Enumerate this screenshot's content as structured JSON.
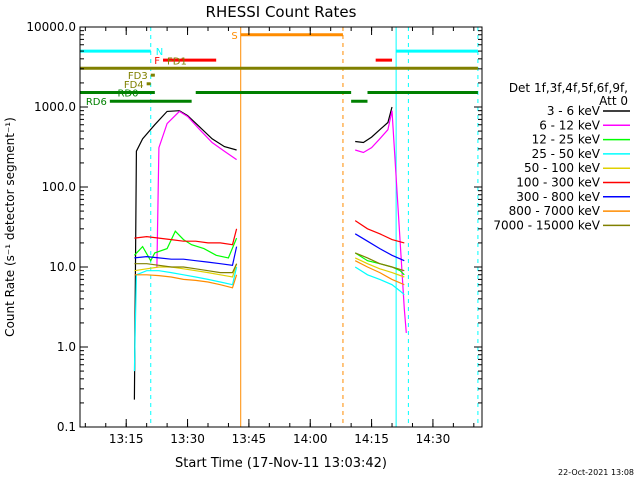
{
  "chart_data": {
    "type": "line",
    "title": "RHESSI Count Rates",
    "xlabel": "Start Time (17-Nov-11 13:03:42)",
    "ylabel": "Count Rate (s⁻¹ detector segment⁻¹)",
    "y_scale": "log",
    "x_range": [
      "13:03:42",
      "14:42:00"
    ],
    "ylim": [
      0.1,
      10000
    ],
    "x_ticks": [
      "13:15",
      "13:30",
      "13:45",
      "14:00",
      "14:15",
      "14:30"
    ],
    "y_ticks": [
      "0.1",
      "1.0",
      "10.0",
      "100.0",
      "1000.0",
      "10000.0"
    ],
    "footer": "22-Oct-2021 13:08",
    "legend": {
      "header": [
        "Det 1f,3f,4f,5f,6f,9f,",
        "Att 0"
      ],
      "placement": "right"
    },
    "series": [
      {
        "name": "3 - 6 keV",
        "color": "#000000",
        "x": [
          "13:17:00",
          "13:17:30",
          "13:19:00",
          "13:22:00",
          "13:25:00",
          "13:28:00",
          "13:30:00",
          "13:33:00",
          "13:36:00",
          "13:39:00",
          "13:42:00",
          "14:11:00",
          "14:13:00",
          "14:15:00",
          "14:17:00",
          "14:19:00",
          "14:20:00"
        ],
        "y": [
          0.22,
          280,
          400,
          600,
          880,
          900,
          780,
          560,
          400,
          320,
          290,
          370,
          360,
          420,
          520,
          640,
          1000
        ]
      },
      {
        "name": "6 - 12 keV",
        "color": "#ff00ff",
        "x": [
          "13:22:30",
          "13:23:00",
          "13:25:00",
          "13:28:00",
          "13:30:00",
          "13:33:00",
          "13:36:00",
          "13:39:00",
          "13:42:00",
          "14:11:00",
          "14:13:00",
          "14:15:00",
          "14:17:00",
          "14:19:00",
          "14:20:00",
          "14:23:00",
          "14:23:30"
        ],
        "y": [
          10,
          310,
          620,
          880,
          760,
          520,
          360,
          280,
          220,
          290,
          270,
          310,
          400,
          520,
          900,
          3,
          1.5
        ]
      },
      {
        "name": "12 - 25 keV",
        "color": "#00ff00",
        "x": [
          "13:17:00",
          "13:19:00",
          "13:21:00",
          "13:22:00",
          "13:25:00",
          "13:27:00",
          "13:29:00",
          "13:31:00",
          "13:34:00",
          "13:37:00",
          "13:40:00",
          "13:42:00",
          "14:11:00",
          "14:14:00",
          "14:17:00",
          "14:20:00",
          "14:22:00",
          "14:23:00"
        ],
        "y": [
          14,
          18,
          12,
          15,
          17,
          28,
          22,
          19,
          17,
          14,
          13,
          23,
          15,
          12,
          11,
          10,
          9,
          8
        ]
      },
      {
        "name": "25 - 50 keV",
        "color": "#00ffff",
        "x": [
          "13:17:00",
          "13:17:30",
          "13:20:00",
          "13:23:00",
          "13:26:00",
          "13:29:00",
          "13:32:00",
          "13:35:00",
          "13:38:00",
          "13:41:00",
          "13:42:00",
          "14:11:00",
          "14:14:00",
          "14:17:00",
          "14:20:00",
          "14:22:00",
          "14:23:00"
        ],
        "y": [
          0.5,
          8,
          9,
          9,
          8.5,
          8,
          7.5,
          7,
          6.5,
          6,
          10,
          10,
          8,
          7,
          6,
          5,
          4.5
        ]
      },
      {
        "name": "50 - 100 keV",
        "color": "#e0d000",
        "x": [
          "13:17:00",
          "13:20:00",
          "13:23:00",
          "13:26:00",
          "13:29:00",
          "13:32:00",
          "13:35:00",
          "13:38:00",
          "13:41:00",
          "13:42:00",
          "14:11:00",
          "14:14:00",
          "14:17:00",
          "14:20:00",
          "14:23:00"
        ],
        "y": [
          9,
          9.5,
          10,
          10,
          9.5,
          9,
          8.5,
          8,
          7.5,
          11,
          13,
          11,
          9.5,
          8.5,
          7.5
        ]
      },
      {
        "name": "100 - 300 keV",
        "color": "#ff0000",
        "x": [
          "13:17:00",
          "13:20:00",
          "13:23:00",
          "13:26:00",
          "13:29:00",
          "13:32:00",
          "13:35:00",
          "13:38:00",
          "13:41:00",
          "13:42:00",
          "14:11:00",
          "14:14:00",
          "14:17:00",
          "14:20:00",
          "14:23:00"
        ],
        "y": [
          23,
          24,
          23,
          22,
          21,
          21,
          20,
          20,
          19,
          30,
          38,
          30,
          26,
          22,
          20
        ]
      },
      {
        "name": "300 - 800 keV",
        "color": "#0000ff",
        "x": [
          "13:17:00",
          "13:20:00",
          "13:23:00",
          "13:26:00",
          "13:29:00",
          "13:32:00",
          "13:35:00",
          "13:38:00",
          "13:41:00",
          "13:42:00",
          "14:11:00",
          "14:14:00",
          "14:17:00",
          "14:20:00",
          "14:23:00"
        ],
        "y": [
          13,
          13.5,
          13,
          12.5,
          12.5,
          12,
          11.5,
          11,
          10.5,
          18,
          26,
          21,
          17,
          14,
          12
        ]
      },
      {
        "name": "800 - 7000 keV",
        "color": "#ff8c00",
        "x": [
          "13:17:00",
          "13:20:00",
          "13:23:00",
          "13:26:00",
          "13:29:00",
          "13:32:00",
          "13:35:00",
          "13:38:00",
          "13:41:00",
          "13:42:00",
          "14:11:00",
          "14:14:00",
          "14:17:00",
          "14:20:00",
          "14:23:00"
        ],
        "y": [
          8,
          8,
          7.8,
          7.5,
          7,
          6.8,
          6.5,
          6,
          5.5,
          8,
          12,
          10,
          8.5,
          7,
          6
        ]
      },
      {
        "name": "7000 - 15000 keV",
        "color": "#808000",
        "x": [
          "13:17:00",
          "13:20:00",
          "13:23:00",
          "13:26:00",
          "13:29:00",
          "13:32:00",
          "13:35:00",
          "13:38:00",
          "13:41:00",
          "13:42:00",
          "14:11:00",
          "14:14:00",
          "14:17:00",
          "14:20:00",
          "14:23:00"
        ],
        "y": [
          11,
          11,
          10.5,
          10,
          10,
          9.5,
          9,
          8.5,
          8.5,
          11,
          15,
          13,
          11,
          10,
          9
        ]
      }
    ],
    "flag_bars": [
      {
        "label": "N",
        "color": "#00ffff",
        "segments": [
          [
            "13:03:42",
            "13:21:00"
          ],
          [
            "14:21:00",
            "14:41:00"
          ]
        ],
        "y": 5000
      },
      {
        "label": "F",
        "color": "#ff0000",
        "segments": [
          [
            "13:24:00",
            "13:37:00"
          ],
          [
            "14:16:00",
            "14:20:00"
          ]
        ],
        "y": 3850
      },
      {
        "label": "FD1",
        "color": "#808000",
        "segments": [
          [
            "13:03:42",
            "14:41:00"
          ]
        ],
        "y": 3050
      },
      {
        "label": "FD3",
        "color": "#808000",
        "segments": [
          [
            "13:21:00",
            "13:22:00"
          ]
        ],
        "y": 2500
      },
      {
        "label": "FD4",
        "color": "#808000",
        "segments": [
          [
            "13:20:00",
            "13:21:00"
          ]
        ],
        "y": 1950
      },
      {
        "label": "RD0",
        "color": "#008000",
        "segments": [
          [
            "13:03:42",
            "13:22:00"
          ],
          [
            "13:32:00",
            "14:10:00"
          ],
          [
            "14:14:00",
            "14:41:00"
          ]
        ],
        "y": 1520
      },
      {
        "label": "RD6",
        "color": "#008000",
        "segments": [
          [
            "13:11:00",
            "13:31:00"
          ],
          [
            "14:10:00",
            "14:14:00"
          ]
        ],
        "y": 1180
      },
      {
        "label": "S",
        "color": "#ff8c00",
        "segments": [
          [
            "13:43:00",
            "14:08:00"
          ]
        ],
        "y": 8000
      }
    ],
    "vertical_markers": [
      {
        "time": "13:03:42",
        "color": "#00ffff",
        "style": "solid"
      },
      {
        "time": "13:21:00",
        "color": "#00ffff",
        "style": "dashed"
      },
      {
        "time": "13:43:00",
        "color": "#ff8c00",
        "style": "solid"
      },
      {
        "time": "14:08:00",
        "color": "#ff8c00",
        "style": "dashed"
      },
      {
        "time": "14:21:00",
        "color": "#00ffff",
        "style": "solid"
      },
      {
        "time": "14:24:00",
        "color": "#00ffff",
        "style": "dashed"
      },
      {
        "time": "14:41:00",
        "color": "#00ffff",
        "style": "dashed"
      }
    ],
    "grid": false
  }
}
